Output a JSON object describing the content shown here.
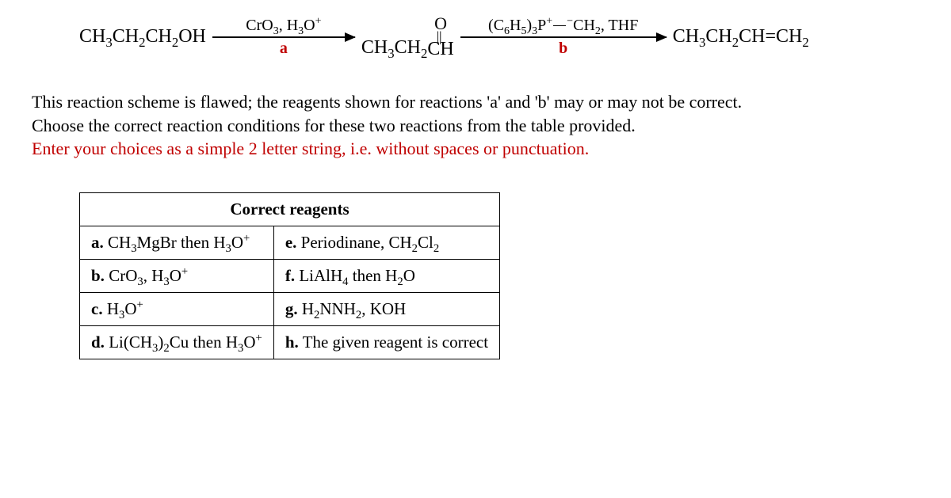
{
  "scheme": {
    "start": "CH3CH2CH2OH",
    "arrow_a": {
      "top": "CrO3, H3O+",
      "label": "a"
    },
    "intermediate_prefix": "CH3CH2",
    "intermediate_ch": "CH",
    "intermediate_o": "O",
    "arrow_b": {
      "top": "(C6H5)3P+–−CH2, THF",
      "label": "b"
    },
    "product": "CH3CH2CH=CH2"
  },
  "instructions": {
    "line1": "This reaction scheme is flawed; the reagents shown for reactions 'a' and 'b' may or may not be correct.",
    "line2": "Choose the correct reaction conditions for these two reactions from the table provided.",
    "line3": "Enter your choices as a simple 2 letter string, i.e. without spaces or punctuation."
  },
  "table": {
    "header": "Correct reagents",
    "rows": [
      {
        "left_label": "a.",
        "left": "CH3MgBr then H3O+",
        "right_label": "e.",
        "right": "Periodinane, CH2Cl2"
      },
      {
        "left_label": "b.",
        "left": "CrO3, H3O+",
        "right_label": "f.",
        "right": "LiAlH4 then H2O"
      },
      {
        "left_label": "c.",
        "left": "H3O+",
        "right_label": "g.",
        "right": "H2NNH2, KOH"
      },
      {
        "left_label": "d.",
        "left": "Li(CH3)2Cu then H3O+",
        "right_label": "h.",
        "right": "The given reagent is correct"
      }
    ]
  },
  "colors": {
    "red": "#c00000",
    "black": "#000000",
    "bg": "#ffffff"
  }
}
